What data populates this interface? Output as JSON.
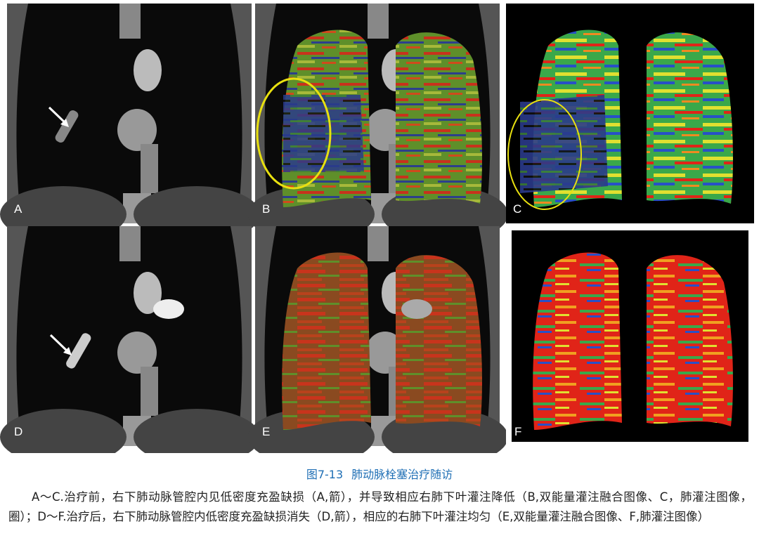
{
  "figure": {
    "panels": [
      {
        "label": "A"
      },
      {
        "label": "B"
      },
      {
        "label": "C"
      },
      {
        "label": "D"
      },
      {
        "label": "E"
      },
      {
        "label": "F"
      }
    ]
  },
  "caption": {
    "number": "图7-13",
    "title": "肺动脉栓塞治疗随访",
    "text": "A～C.治疗前，右下肺动脉管腔内见低密度充盈缺损（A,箭），并导致相应右肺下叶灌注降低（B,双能量灌注融合图像、C，肺灌注图像，圈）；D～F.治疗后，右下肺动脉管腔内低密度充盈缺损消失（D,箭），相应的右肺下叶灌注均匀（E,双能量灌注融合图像、F,肺灌注图像）"
  }
}
